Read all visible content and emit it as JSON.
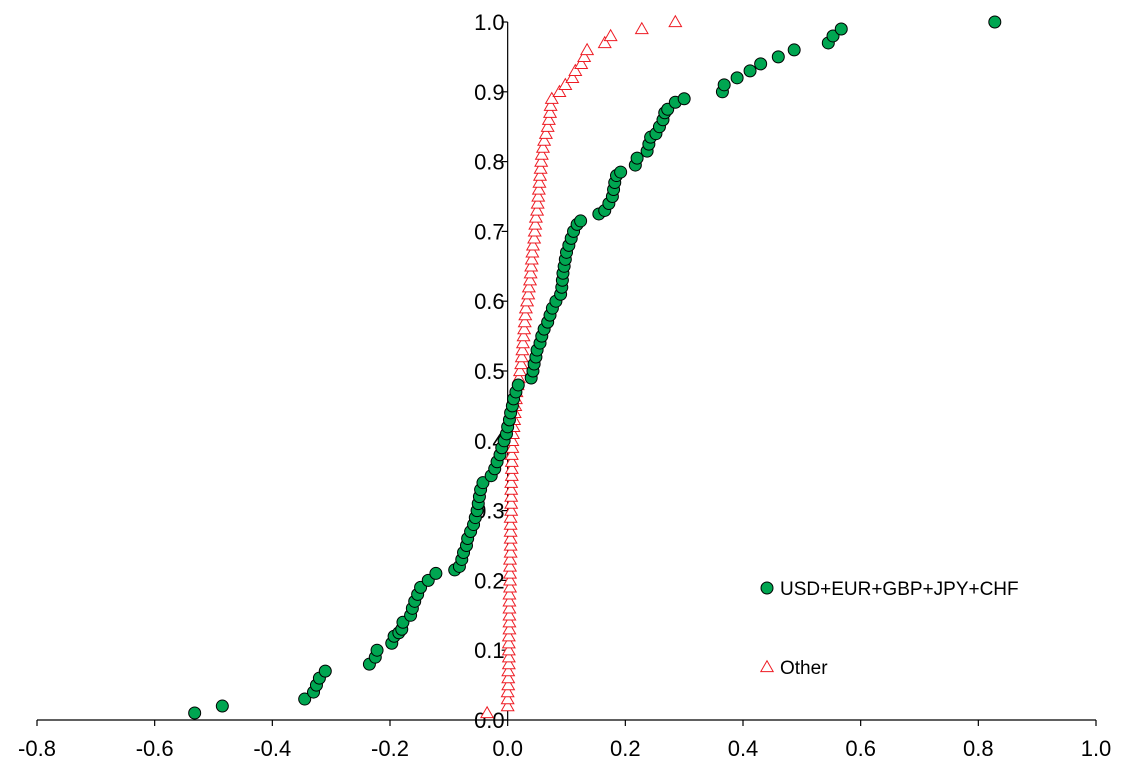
{
  "chart_data": {
    "type": "scatter",
    "title": "",
    "xlabel": "",
    "ylabel": "",
    "xlim": [
      -0.8,
      1.0
    ],
    "ylim": [
      0.0,
      1.0
    ],
    "x_ticks": [
      "-0.8",
      "-0.6",
      "-0.4",
      "-0.2",
      "0.0",
      "0.2",
      "0.4",
      "0.6",
      "0.8",
      "1.0"
    ],
    "y_ticks": [
      "0.0",
      "0.1",
      "0.2",
      "0.3",
      "0.4",
      "0.5",
      "0.6",
      "0.7",
      "0.8",
      "0.9",
      "1.0"
    ],
    "grid": false,
    "legend_position": "right",
    "series": [
      {
        "name": "USD+EUR+GBP+JPY+CHF",
        "marker": "circle",
        "fill": "#00a651",
        "stroke": "#000000",
        "points": [
          [
            -0.532,
            0.01
          ],
          [
            -0.485,
            0.02
          ],
          [
            -0.345,
            0.03
          ],
          [
            -0.33,
            0.04
          ],
          [
            -0.325,
            0.05
          ],
          [
            -0.32,
            0.06
          ],
          [
            -0.31,
            0.07
          ],
          [
            -0.235,
            0.08
          ],
          [
            -0.225,
            0.09
          ],
          [
            -0.222,
            0.1
          ],
          [
            -0.197,
            0.11
          ],
          [
            -0.193,
            0.12
          ],
          [
            -0.185,
            0.125
          ],
          [
            -0.18,
            0.13
          ],
          [
            -0.178,
            0.14
          ],
          [
            -0.165,
            0.15
          ],
          [
            -0.162,
            0.16
          ],
          [
            -0.158,
            0.17
          ],
          [
            -0.153,
            0.18
          ],
          [
            -0.148,
            0.19
          ],
          [
            -0.135,
            0.2
          ],
          [
            -0.122,
            0.21
          ],
          [
            -0.09,
            0.215
          ],
          [
            -0.082,
            0.22
          ],
          [
            -0.078,
            0.23
          ],
          [
            -0.075,
            0.24
          ],
          [
            -0.07,
            0.25
          ],
          [
            -0.068,
            0.26
          ],
          [
            -0.063,
            0.27
          ],
          [
            -0.058,
            0.28
          ],
          [
            -0.055,
            0.29
          ],
          [
            -0.052,
            0.3
          ],
          [
            -0.05,
            0.31
          ],
          [
            -0.048,
            0.32
          ],
          [
            -0.046,
            0.33
          ],
          [
            -0.042,
            0.34
          ],
          [
            -0.028,
            0.35
          ],
          [
            -0.022,
            0.36
          ],
          [
            -0.018,
            0.37
          ],
          [
            -0.013,
            0.38
          ],
          [
            -0.01,
            0.39
          ],
          [
            -0.006,
            0.4
          ],
          [
            -0.002,
            0.41
          ],
          [
            0.0,
            0.42
          ],
          [
            0.003,
            0.43
          ],
          [
            0.005,
            0.44
          ],
          [
            0.008,
            0.45
          ],
          [
            0.01,
            0.46
          ],
          [
            0.014,
            0.47
          ],
          [
            0.018,
            0.48
          ],
          [
            0.04,
            0.49
          ],
          [
            0.043,
            0.5
          ],
          [
            0.045,
            0.51
          ],
          [
            0.048,
            0.52
          ],
          [
            0.05,
            0.53
          ],
          [
            0.055,
            0.54
          ],
          [
            0.058,
            0.55
          ],
          [
            0.062,
            0.56
          ],
          [
            0.068,
            0.57
          ],
          [
            0.072,
            0.58
          ],
          [
            0.076,
            0.59
          ],
          [
            0.082,
            0.6
          ],
          [
            0.09,
            0.61
          ],
          [
            0.092,
            0.62
          ],
          [
            0.093,
            0.63
          ],
          [
            0.094,
            0.64
          ],
          [
            0.096,
            0.65
          ],
          [
            0.098,
            0.66
          ],
          [
            0.1,
            0.67
          ],
          [
            0.104,
            0.68
          ],
          [
            0.108,
            0.69
          ],
          [
            0.112,
            0.7
          ],
          [
            0.118,
            0.71
          ],
          [
            0.124,
            0.715
          ],
          [
            0.155,
            0.725
          ],
          [
            0.165,
            0.73
          ],
          [
            0.172,
            0.74
          ],
          [
            0.178,
            0.75
          ],
          [
            0.18,
            0.76
          ],
          [
            0.182,
            0.77
          ],
          [
            0.185,
            0.78
          ],
          [
            0.192,
            0.785
          ],
          [
            0.217,
            0.795
          ],
          [
            0.22,
            0.805
          ],
          [
            0.237,
            0.815
          ],
          [
            0.24,
            0.825
          ],
          [
            0.243,
            0.835
          ],
          [
            0.252,
            0.84
          ],
          [
            0.258,
            0.85
          ],
          [
            0.264,
            0.86
          ],
          [
            0.267,
            0.87
          ],
          [
            0.272,
            0.875
          ],
          [
            0.285,
            0.885
          ],
          [
            0.3,
            0.89
          ],
          [
            0.365,
            0.9
          ],
          [
            0.368,
            0.91
          ],
          [
            0.39,
            0.92
          ],
          [
            0.412,
            0.93
          ],
          [
            0.43,
            0.94
          ],
          [
            0.46,
            0.95
          ],
          [
            0.487,
            0.96
          ],
          [
            0.545,
            0.97
          ],
          [
            0.553,
            0.98
          ],
          [
            0.567,
            0.99
          ],
          [
            0.828,
            1.0
          ]
        ]
      },
      {
        "name": "Other",
        "marker": "triangle",
        "fill": "#ffffff",
        "stroke": "#ee1c24",
        "points": [
          [
            -0.035,
            0.01
          ],
          [
            0.0,
            0.02
          ],
          [
            0.0,
            0.03
          ],
          [
            0.0,
            0.04
          ],
          [
            0.001,
            0.05
          ],
          [
            0.001,
            0.06
          ],
          [
            0.001,
            0.07
          ],
          [
            0.002,
            0.08
          ],
          [
            0.002,
            0.09
          ],
          [
            0.002,
            0.1
          ],
          [
            0.002,
            0.11
          ],
          [
            0.002,
            0.12
          ],
          [
            0.003,
            0.13
          ],
          [
            0.003,
            0.14
          ],
          [
            0.003,
            0.15
          ],
          [
            0.003,
            0.16
          ],
          [
            0.003,
            0.17
          ],
          [
            0.003,
            0.18
          ],
          [
            0.004,
            0.19
          ],
          [
            0.004,
            0.2
          ],
          [
            0.004,
            0.21
          ],
          [
            0.004,
            0.22
          ],
          [
            0.004,
            0.23
          ],
          [
            0.005,
            0.24
          ],
          [
            0.005,
            0.25
          ],
          [
            0.005,
            0.26
          ],
          [
            0.005,
            0.27
          ],
          [
            0.005,
            0.28
          ],
          [
            0.005,
            0.29
          ],
          [
            0.006,
            0.3
          ],
          [
            0.006,
            0.31
          ],
          [
            0.006,
            0.32
          ],
          [
            0.006,
            0.33
          ],
          [
            0.006,
            0.34
          ],
          [
            0.007,
            0.35
          ],
          [
            0.007,
            0.36
          ],
          [
            0.007,
            0.37
          ],
          [
            0.007,
            0.38
          ],
          [
            0.008,
            0.39
          ],
          [
            0.008,
            0.4
          ],
          [
            0.009,
            0.41
          ],
          [
            0.01,
            0.42
          ],
          [
            0.011,
            0.43
          ],
          [
            0.012,
            0.44
          ],
          [
            0.013,
            0.45
          ],
          [
            0.014,
            0.46
          ],
          [
            0.015,
            0.47
          ],
          [
            0.017,
            0.48
          ],
          [
            0.019,
            0.49
          ],
          [
            0.021,
            0.5
          ],
          [
            0.023,
            0.51
          ],
          [
            0.024,
            0.52
          ],
          [
            0.025,
            0.53
          ],
          [
            0.026,
            0.54
          ],
          [
            0.027,
            0.55
          ],
          [
            0.028,
            0.56
          ],
          [
            0.029,
            0.57
          ],
          [
            0.03,
            0.58
          ],
          [
            0.031,
            0.59
          ],
          [
            0.033,
            0.6
          ],
          [
            0.035,
            0.61
          ],
          [
            0.036,
            0.62
          ],
          [
            0.038,
            0.63
          ],
          [
            0.039,
            0.64
          ],
          [
            0.04,
            0.65
          ],
          [
            0.041,
            0.66
          ],
          [
            0.042,
            0.67
          ],
          [
            0.043,
            0.68
          ],
          [
            0.045,
            0.69
          ],
          [
            0.046,
            0.7
          ],
          [
            0.047,
            0.71
          ],
          [
            0.048,
            0.72
          ],
          [
            0.05,
            0.73
          ],
          [
            0.051,
            0.74
          ],
          [
            0.052,
            0.75
          ],
          [
            0.053,
            0.76
          ],
          [
            0.054,
            0.77
          ],
          [
            0.055,
            0.78
          ],
          [
            0.056,
            0.79
          ],
          [
            0.057,
            0.8
          ],
          [
            0.058,
            0.81
          ],
          [
            0.06,
            0.82
          ],
          [
            0.062,
            0.83
          ],
          [
            0.065,
            0.84
          ],
          [
            0.068,
            0.85
          ],
          [
            0.07,
            0.86
          ],
          [
            0.072,
            0.87
          ],
          [
            0.073,
            0.88
          ],
          [
            0.075,
            0.89
          ],
          [
            0.088,
            0.9
          ],
          [
            0.098,
            0.91
          ],
          [
            0.11,
            0.92
          ],
          [
            0.115,
            0.93
          ],
          [
            0.125,
            0.94
          ],
          [
            0.13,
            0.95
          ],
          [
            0.135,
            0.96
          ],
          [
            0.165,
            0.97
          ],
          [
            0.175,
            0.98
          ],
          [
            0.228,
            0.99
          ],
          [
            0.285,
            1.0
          ]
        ]
      }
    ]
  }
}
